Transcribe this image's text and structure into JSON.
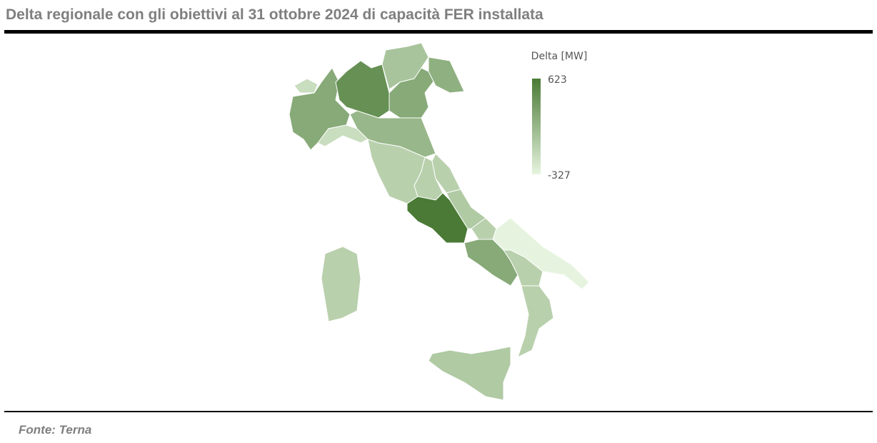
{
  "chart_data": {
    "type": "choropleth",
    "title": "Delta regionale con gli obiettivi al 31 ottobre 2024 di capacità FER installata",
    "legend_title": "Delta [MW]",
    "clim": [
      -327,
      623
    ],
    "colors": [
      "#e6f4df",
      "#4a7a35"
    ],
    "values": [
      -150,
      250,
      450,
      50,
      250,
      200,
      -150,
      150,
      -50,
      -50,
      -50,
      623,
      0,
      -50,
      250,
      -327,
      -50,
      -50,
      0,
      -50
    ],
    "source": "Fonte: Terna"
  }
}
